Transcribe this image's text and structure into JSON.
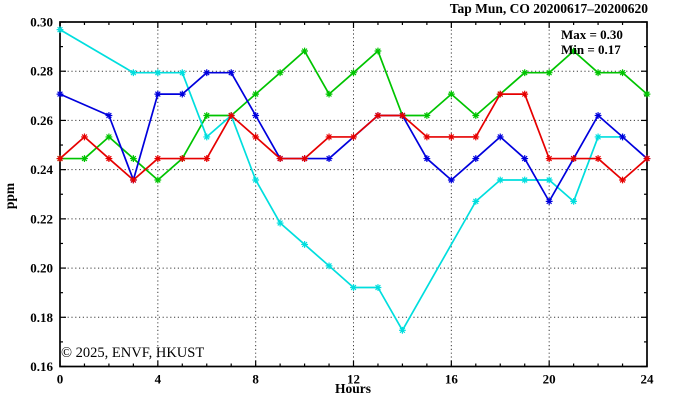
{
  "title": "Tap Mun, CO 20200617–20200620",
  "watermark": "© 2025, ENVF, HKUST",
  "annotations": {
    "max": "Max = 0.30",
    "min": "Min = 0.17"
  },
  "chart_data": {
    "type": "line",
    "title": "Tap Mun, CO 20200617–20200620",
    "xlabel": "Hours",
    "ylabel": "ppm",
    "xlim": [
      0,
      24
    ],
    "ylim": [
      0.16,
      0.3
    ],
    "x_major_ticks": [
      0,
      4,
      8,
      12,
      16,
      20,
      24
    ],
    "x_tick_labels": [
      "0",
      "4",
      "8",
      "12",
      "16",
      "20",
      "24"
    ],
    "x_minor_step": 1,
    "y_major_ticks": [
      0.16,
      0.18,
      0.2,
      0.22,
      0.24,
      0.26,
      0.28,
      0.3
    ],
    "y_tick_labels": [
      "0.16",
      "0.18",
      "0.20",
      "0.22",
      "0.24",
      "0.26",
      "0.28",
      "0.30"
    ],
    "y_minor_step": 0.01,
    "grid": {
      "style": "dotted",
      "x_at": [
        4,
        8,
        12,
        16,
        20
      ],
      "y_at": [
        0.18,
        0.2,
        0.22,
        0.24,
        0.26,
        0.28
      ]
    },
    "legend": "none",
    "marker": "asterisk",
    "series": [
      {
        "name": "green",
        "color": "#00c400",
        "points": [
          [
            0,
            0.2445
          ],
          [
            1,
            0.2445
          ],
          [
            2,
            0.2533
          ],
          [
            3,
            0.2445
          ],
          [
            4,
            0.2358
          ],
          [
            5,
            0.2445
          ],
          [
            6,
            0.262
          ],
          [
            7,
            0.262
          ],
          [
            8,
            0.2707
          ],
          [
            9,
            0.2794
          ],
          [
            10,
            0.2882
          ],
          [
            11,
            0.2707
          ],
          [
            12,
            0.2794
          ],
          [
            13,
            0.2882
          ],
          [
            14,
            0.262
          ],
          [
            15,
            0.262
          ],
          [
            16,
            0.2707
          ],
          [
            17,
            0.262
          ],
          [
            18,
            0.2707
          ],
          [
            19,
            0.2794
          ],
          [
            20,
            0.2794
          ],
          [
            21,
            0.2882
          ],
          [
            22,
            0.2794
          ],
          [
            23,
            0.2794
          ],
          [
            24,
            0.2707
          ]
        ]
      },
      {
        "name": "cyan",
        "color": "#00dede",
        "points": [
          [
            0,
            0.2969
          ],
          [
            3,
            0.2794
          ],
          [
            4,
            0.2794
          ],
          [
            5,
            0.2794
          ],
          [
            6,
            0.2533
          ],
          [
            7,
            0.262
          ],
          [
            8,
            0.2358
          ],
          [
            9,
            0.2183
          ],
          [
            10,
            0.2096
          ],
          [
            11,
            0.2009
          ],
          [
            12,
            0.1921
          ],
          [
            13,
            0.1921
          ],
          [
            14,
            0.1747
          ],
          [
            17,
            0.2271
          ],
          [
            18,
            0.2358
          ],
          [
            19,
            0.2358
          ],
          [
            20,
            0.2358
          ],
          [
            21,
            0.2271
          ],
          [
            22,
            0.2533
          ],
          [
            23,
            0.2533
          ]
        ]
      },
      {
        "name": "blue",
        "color": "#0000dd",
        "points": [
          [
            0,
            0.2707
          ],
          [
            2,
            0.262
          ],
          [
            3,
            0.2358
          ],
          [
            4,
            0.2707
          ],
          [
            5,
            0.2707
          ],
          [
            6,
            0.2794
          ],
          [
            7,
            0.2794
          ],
          [
            8,
            0.262
          ],
          [
            9,
            0.2445
          ],
          [
            10,
            0.2445
          ],
          [
            11,
            0.2445
          ],
          [
            13,
            0.262
          ],
          [
            14,
            0.262
          ],
          [
            15,
            0.2445
          ],
          [
            16,
            0.2358
          ],
          [
            17,
            0.2445
          ],
          [
            18,
            0.2533
          ],
          [
            19,
            0.2445
          ],
          [
            20,
            0.2271
          ],
          [
            21,
            0.2445
          ],
          [
            22,
            0.262
          ],
          [
            23,
            0.2533
          ],
          [
            24,
            0.2445
          ]
        ]
      },
      {
        "name": "red",
        "color": "#e60000",
        "points": [
          [
            0,
            0.2445
          ],
          [
            1,
            0.2533
          ],
          [
            2,
            0.2445
          ],
          [
            3,
            0.2358
          ],
          [
            4,
            0.2445
          ],
          [
            5,
            0.2445
          ],
          [
            6,
            0.2445
          ],
          [
            7,
            0.262
          ],
          [
            8,
            0.2533
          ],
          [
            9,
            0.2445
          ],
          [
            10,
            0.2445
          ],
          [
            11,
            0.2533
          ],
          [
            12,
            0.2533
          ],
          [
            13,
            0.262
          ],
          [
            14,
            0.262
          ],
          [
            15,
            0.2533
          ],
          [
            16,
            0.2533
          ],
          [
            17,
            0.2533
          ],
          [
            18,
            0.2707
          ],
          [
            19,
            0.2707
          ],
          [
            20,
            0.2445
          ],
          [
            21,
            0.2445
          ],
          [
            22,
            0.2445
          ],
          [
            23,
            0.2358
          ],
          [
            24,
            0.2445
          ]
        ]
      }
    ]
  }
}
